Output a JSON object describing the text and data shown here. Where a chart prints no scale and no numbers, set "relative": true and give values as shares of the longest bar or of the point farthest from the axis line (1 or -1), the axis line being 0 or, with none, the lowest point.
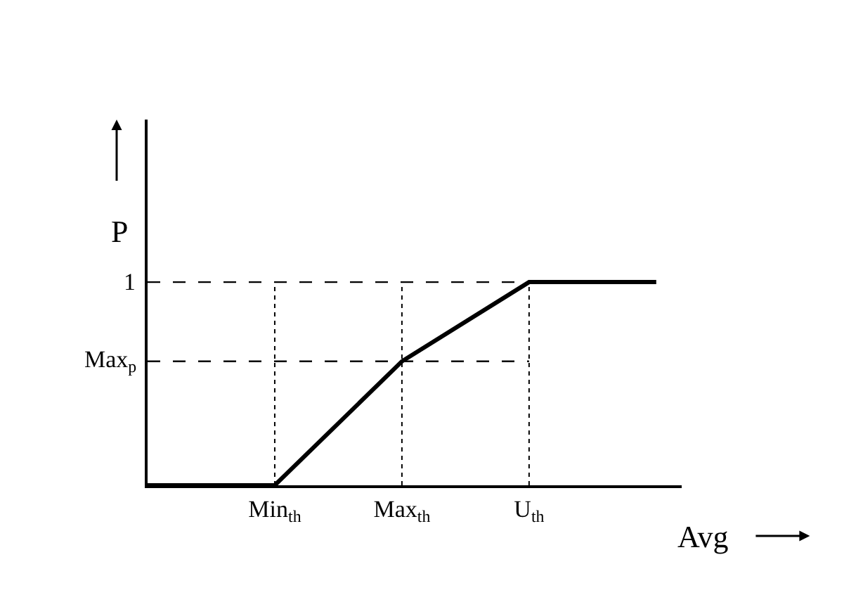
{
  "chart_data": {
    "type": "line",
    "xlabel": "Avg",
    "ylabel": "P",
    "relative": true,
    "categories": [
      null,
      "Min$_{th}$",
      "Max$_{th}$",
      "U$_{th}$",
      null
    ],
    "series": [
      {
        "color": "#000000",
        "values": [
          0,
          0,
          0.61,
          1,
          1
        ]
      }
    ],
    "ref_lines": [
      {
        "axis": "y",
        "value": 0.61,
        "label": "Max$_{p}$",
        "line_style": "dashed"
      },
      {
        "axis": "y",
        "value": 1,
        "label": "1",
        "line_style": "dashed"
      }
    ],
    "grid": "x",
    "line_style": "solid",
    "marker": "none"
  }
}
